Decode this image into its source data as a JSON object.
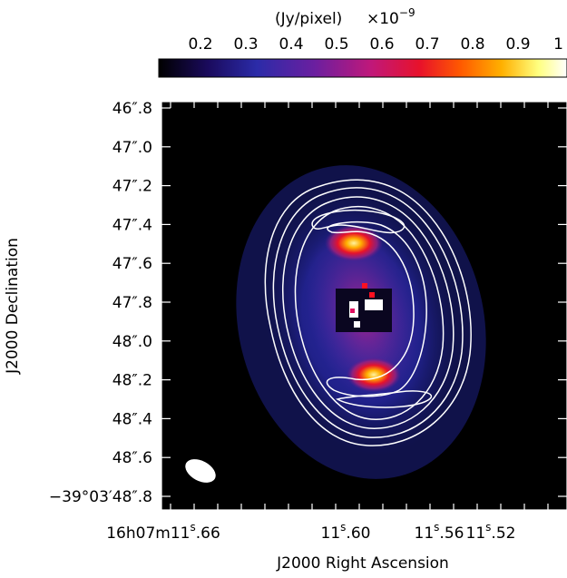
{
  "colorbar": {
    "unit_label": "(Jy/pixel)",
    "multiplier": "×10",
    "exponent": "−9",
    "tick_labels": [
      "0.2",
      "0.3",
      "0.4",
      "0.5",
      "0.6",
      "0.7",
      "0.8",
      "0.9",
      "1"
    ],
    "range": [
      0.15,
      1.0
    ]
  },
  "axes": {
    "x_title": "J2000 Right Ascension",
    "y_title": "J2000 Declination",
    "y_ticks": [
      {
        "deg": "",
        "arcsec": "46″.8"
      },
      {
        "deg": "",
        "arcsec": "47″.0"
      },
      {
        "deg": "",
        "arcsec": "47″.2"
      },
      {
        "deg": "",
        "arcsec": "47″.4"
      },
      {
        "deg": "",
        "arcsec": "47″.6"
      },
      {
        "deg": "",
        "arcsec": "47″.8"
      },
      {
        "deg": "",
        "arcsec": "48″.0"
      },
      {
        "deg": "",
        "arcsec": "48″.2"
      },
      {
        "deg": "",
        "arcsec": "48″.4"
      },
      {
        "deg": "",
        "arcsec": "48″.6"
      },
      {
        "deg": "−39°03′",
        "arcsec": "48″.8"
      }
    ],
    "x_ticks": [
      {
        "prefix": "16h07m11",
        "sup": "s",
        "suffix": ".66",
        "full": "16h07m11s.66"
      },
      {
        "prefix": "11",
        "sup": "s",
        "suffix": ".60",
        "full": "11s.60"
      },
      {
        "prefix": "11",
        "sup": "s",
        "suffix": ".56",
        "full": "11s.56"
      },
      {
        "prefix": "11",
        "sup": "s",
        "suffix": ".52",
        "full": "11s.52"
      }
    ]
  },
  "image": {
    "colormap_stops": [
      "#000000",
      "#1a0a5c",
      "#2b2ba8",
      "#6a1fa0",
      "#c0187a",
      "#e8122a",
      "#ff5a00",
      "#ffb000",
      "#ffff80",
      "#ffffff"
    ],
    "contour_color": "#ffffff",
    "beam_color": "#ffffff"
  }
}
